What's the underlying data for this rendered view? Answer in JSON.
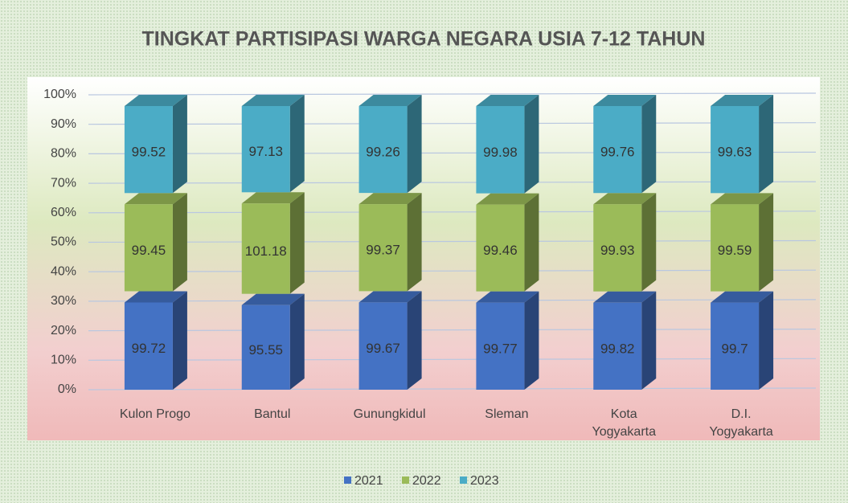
{
  "chart_data": {
    "type": "bar",
    "stacked": "percent",
    "title": "TINGKAT PARTISIPASI WARGA NEGARA USIA 7-12 TAHUN",
    "categories": [
      "Kulon Progo",
      "Bantul",
      "Gunungkidul",
      "Sleman",
      "Kota Yogyakarta",
      "D.I. Yogyakarta"
    ],
    "series": [
      {
        "name": "2021",
        "color": "#4472c4",
        "values": [
          99.72,
          95.55,
          99.67,
          99.77,
          99.82,
          99.7
        ]
      },
      {
        "name": "2022",
        "color": "#9bbb59",
        "values": [
          99.45,
          101.18,
          99.37,
          99.46,
          99.93,
          99.59
        ]
      },
      {
        "name": "2023",
        "color": "#4bacc6",
        "values": [
          99.52,
          97.13,
          99.26,
          99.98,
          99.76,
          99.63
        ]
      }
    ],
    "ylim": [
      0,
      100
    ],
    "yticks": [
      {
        "value": 0,
        "label": "0%"
      },
      {
        "value": 10,
        "label": "10%"
      },
      {
        "value": 20,
        "label": "20%"
      },
      {
        "value": 30,
        "label": "30%"
      },
      {
        "value": 40,
        "label": "40%"
      },
      {
        "value": 50,
        "label": "50%"
      },
      {
        "value": 60,
        "label": "60%"
      },
      {
        "value": 70,
        "label": "70%"
      },
      {
        "value": 80,
        "label": "80%"
      },
      {
        "value": 90,
        "label": "90%"
      },
      {
        "value": 100,
        "label": "100%"
      }
    ],
    "grid": true,
    "legend": "bottom"
  }
}
